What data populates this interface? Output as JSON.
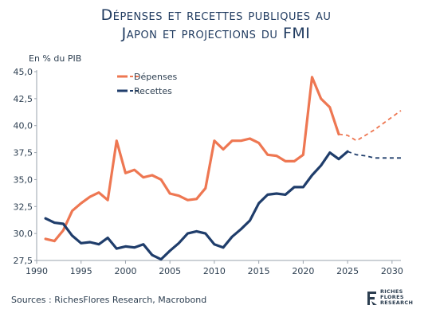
{
  "title_line1": "Dépenses et recettes publiques au",
  "title_line2": "Japon et projections du FMI",
  "unit_label": "En % du PIB",
  "source": "Sources : RichesFlores Research, Macrobond",
  "logo": {
    "line1": "RICHES",
    "line2": "FLORES",
    "line3": "RESEARCH"
  },
  "colors": {
    "depenses": "#ee7752",
    "recettes": "#1f3d6b",
    "axis": "#9aa3ad"
  },
  "chart_data": {
    "type": "line",
    "title": "Dépenses et recettes publiques au Japon et projections du FMI",
    "ylabel": "En % du PIB",
    "xlim": [
      1990,
      2031
    ],
    "ylim": [
      27.5,
      45.0
    ],
    "x_ticks": [
      1990,
      1995,
      2000,
      2005,
      2010,
      2015,
      2020,
      2025,
      2030
    ],
    "y_ticks": [
      "27,5",
      "30,0",
      "32,5",
      "35,0",
      "37,5",
      "40,0",
      "42,5",
      "45,0"
    ],
    "y_tick_values": [
      27.5,
      30.0,
      32.5,
      35.0,
      37.5,
      40.0,
      42.5,
      45.0
    ],
    "legend_position": "top-left",
    "series": [
      {
        "name": "Dépenses",
        "color": "#ee7752",
        "x": [
          1991,
          1992,
          1993,
          1994,
          1995,
          1996,
          1997,
          1998,
          1999,
          2000,
          2001,
          2002,
          2003,
          2004,
          2005,
          2006,
          2007,
          2008,
          2009,
          2010,
          2011,
          2012,
          2013,
          2014,
          2015,
          2016,
          2017,
          2018,
          2019,
          2020,
          2021,
          2022,
          2023,
          2024
        ],
        "y": [
          29.5,
          29.3,
          30.3,
          32.1,
          32.8,
          33.4,
          33.8,
          33.1,
          38.6,
          35.6,
          35.9,
          35.2,
          35.4,
          35.0,
          33.7,
          33.5,
          33.1,
          33.2,
          34.2,
          38.6,
          37.8,
          38.6,
          38.6,
          38.8,
          38.4,
          37.3,
          37.2,
          36.7,
          36.7,
          37.3,
          44.5,
          42.5,
          41.7,
          39.2
        ],
        "proj_x": [
          2024,
          2025,
          2026,
          2027,
          2028,
          2029,
          2030,
          2031
        ],
        "proj_y": [
          39.2,
          39.1,
          38.6,
          39.1,
          39.6,
          40.2,
          40.8,
          41.4
        ]
      },
      {
        "name": "Recettes",
        "color": "#1f3d6b",
        "x": [
          1991,
          1992,
          1993,
          1994,
          1995,
          1996,
          1997,
          1998,
          1999,
          2000,
          2001,
          2002,
          2003,
          2004,
          2005,
          2006,
          2007,
          2008,
          2009,
          2010,
          2011,
          2012,
          2013,
          2014,
          2015,
          2016,
          2017,
          2018,
          2019,
          2020,
          2021,
          2022,
          2023,
          2024,
          2025
        ],
        "y": [
          31.4,
          31.0,
          30.9,
          29.8,
          29.1,
          29.2,
          29.0,
          29.6,
          28.6,
          28.8,
          28.7,
          29.0,
          28.0,
          27.6,
          28.4,
          29.1,
          30.0,
          30.2,
          30.0,
          29.0,
          28.7,
          29.7,
          30.4,
          31.2,
          32.8,
          33.6,
          33.7,
          33.6,
          34.3,
          34.3,
          35.4,
          36.3,
          37.5,
          36.9,
          37.6
        ],
        "proj_x": [
          2025,
          2026,
          2027,
          2028,
          2029,
          2030,
          2031
        ],
        "proj_y": [
          37.6,
          37.3,
          37.2,
          37.0,
          37.0,
          37.0,
          37.0
        ]
      }
    ]
  }
}
